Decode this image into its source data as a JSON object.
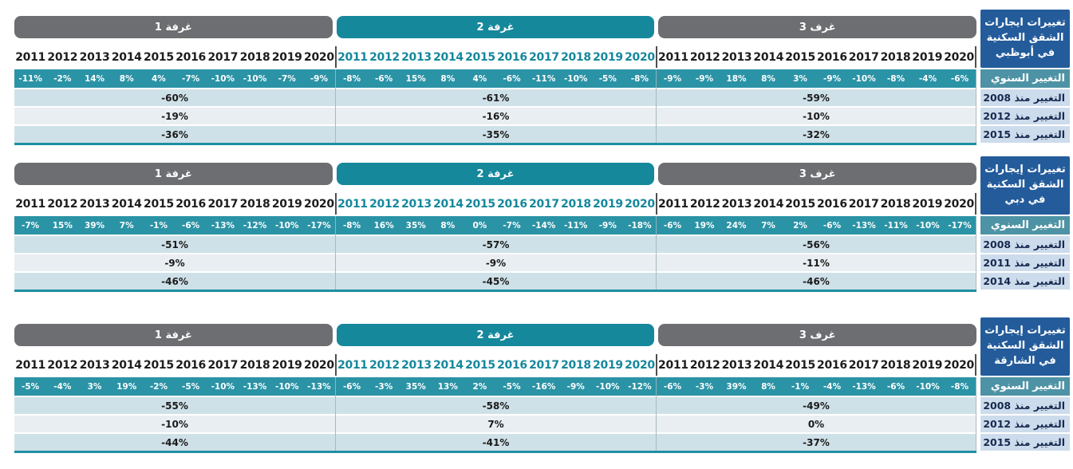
{
  "chart_data": [
    {
      "type": "table",
      "title": "تغييرات ايجارات الشقق السكنية في أبوظبي",
      "title_lines": [
        "تغييرات ايجارات",
        "الشقق السكنية",
        "في أبوظبي"
      ],
      "annual_label": "التغيير السنوي",
      "summary_labels": [
        "التغيير منذ 2008",
        "التغيير منذ 2012",
        "التغيير منذ 2015"
      ],
      "groups": [
        {
          "pill": "1 غرفة",
          "accent": "gray",
          "years": [
            "2011",
            "2012",
            "2013",
            "2014",
            "2015",
            "2016",
            "2017",
            "2018",
            "2019",
            "2020"
          ],
          "annual": [
            "-11%",
            "-2%",
            "14%",
            "8%",
            "4%",
            "-7%",
            "-10%",
            "-10%",
            "-7%",
            "-9%"
          ],
          "summary": [
            "-60%",
            "-19%",
            "-36%"
          ]
        },
        {
          "pill": "2 غرفة",
          "accent": "teal",
          "years": [
            "2011",
            "2012",
            "2013",
            "2014",
            "2015",
            "2016",
            "2017",
            "2018",
            "2019",
            "2020"
          ],
          "annual": [
            "-8%",
            "-6%",
            "15%",
            "8%",
            "4%",
            "-6%",
            "-11%",
            "-10%",
            "-5%",
            "-8%"
          ],
          "summary": [
            "-61%",
            "-16%",
            "-35%"
          ]
        },
        {
          "pill": "3 غرف",
          "accent": "gray",
          "years": [
            "2011",
            "2012",
            "2013",
            "2014",
            "2015",
            "2016",
            "2017",
            "2018",
            "2019",
            "2020"
          ],
          "annual": [
            "-9%",
            "-9%",
            "18%",
            "8%",
            "3%",
            "-9%",
            "-10%",
            "-8%",
            "-4%",
            "-6%"
          ],
          "summary": [
            "-59%",
            "-10%",
            "-32%"
          ]
        }
      ]
    },
    {
      "type": "table",
      "title": "تغييرات إيجارات الشقق السكنية في دبي",
      "title_lines": [
        "تغييرات إيجارات",
        "الشقق السكنية",
        "في دبي"
      ],
      "annual_label": "التغيير السنوي",
      "summary_labels": [
        "التغيير منذ 2008",
        "التغيير منذ 2011",
        "التغيير منذ 2014"
      ],
      "groups": [
        {
          "pill": "1 غرفة",
          "accent": "gray",
          "years": [
            "2011",
            "2012",
            "2013",
            "2014",
            "2015",
            "2016",
            "2017",
            "2018",
            "2019",
            "2020"
          ],
          "annual": [
            "-7%",
            "15%",
            "39%",
            "7%",
            "-1%",
            "-6%",
            "-13%",
            "-12%",
            "-10%",
            "-17%"
          ],
          "summary": [
            "-51%",
            "-9%",
            "-46%"
          ]
        },
        {
          "pill": "2 غرفة",
          "accent": "teal",
          "years": [
            "2011",
            "2012",
            "2013",
            "2014",
            "2015",
            "2016",
            "2017",
            "2018",
            "2019",
            "2020"
          ],
          "annual": [
            "-8%",
            "16%",
            "35%",
            "8%",
            "0%",
            "-7%",
            "-14%",
            "-11%",
            "-9%",
            "-18%"
          ],
          "summary": [
            "-57%",
            "-9%",
            "-45%"
          ]
        },
        {
          "pill": "3 غرف",
          "accent": "gray",
          "years": [
            "2011",
            "2012",
            "2013",
            "2014",
            "2015",
            "2016",
            "2017",
            "2018",
            "2019",
            "2020"
          ],
          "annual": [
            "-6%",
            "19%",
            "24%",
            "7%",
            "2%",
            "-6%",
            "-13%",
            "-11%",
            "-10%",
            "-17%"
          ],
          "summary": [
            "-56%",
            "-11%",
            "-46%"
          ]
        }
      ]
    },
    {
      "type": "table",
      "title": "تغييرات إيجارات الشقق السكنية في الشارقة",
      "title_lines": [
        "تغييرات إيجارات",
        "الشقق السكنية",
        "في الشارقة"
      ],
      "annual_label": "التغيير السنوي",
      "summary_labels": [
        "التغيير منذ 2008",
        "التغيير منذ 2012",
        "التغيير منذ 2015"
      ],
      "groups": [
        {
          "pill": "1 غرفة",
          "accent": "gray",
          "years": [
            "2011",
            "2012",
            "2013",
            "2014",
            "2015",
            "2016",
            "2017",
            "2018",
            "2019",
            "2020"
          ],
          "annual": [
            "-5%",
            "-4%",
            "3%",
            "19%",
            "-2%",
            "-5%",
            "-10%",
            "-13%",
            "-10%",
            "-13%"
          ],
          "summary": [
            "-55%",
            "-10%",
            "-44%"
          ]
        },
        {
          "pill": "2 غرفة",
          "accent": "teal",
          "years": [
            "2011",
            "2012",
            "2013",
            "2014",
            "2015",
            "2016",
            "2017",
            "2018",
            "2019",
            "2020"
          ],
          "annual": [
            "-6%",
            "-3%",
            "35%",
            "13%",
            "2%",
            "-5%",
            "-16%",
            "-9%",
            "-10%",
            "-12%"
          ],
          "summary": [
            "-58%",
            "7%",
            "-41%"
          ]
        },
        {
          "pill": "3 غرف",
          "accent": "gray",
          "years": [
            "2011",
            "2012",
            "2013",
            "2014",
            "2015",
            "2016",
            "2017",
            "2018",
            "2019",
            "2020"
          ],
          "annual": [
            "-6%",
            "-3%",
            "39%",
            "8%",
            "-1%",
            "-4%",
            "-13%",
            "-6%",
            "-10%",
            "-8%"
          ],
          "summary": [
            "-49%",
            "0%",
            "-37%"
          ]
        }
      ]
    }
  ],
  "colors": {
    "teal_accent": "#15889c",
    "teal_row": "#2b93a6",
    "gray_pill": "#6d6e71",
    "title_blue": "#245c9b",
    "annual_label_bg": "#4e93a5",
    "label_row_bg": "#cddcec",
    "summary_row_blue": "#cfe1e8",
    "summary_row_light": "#e9eef2"
  }
}
